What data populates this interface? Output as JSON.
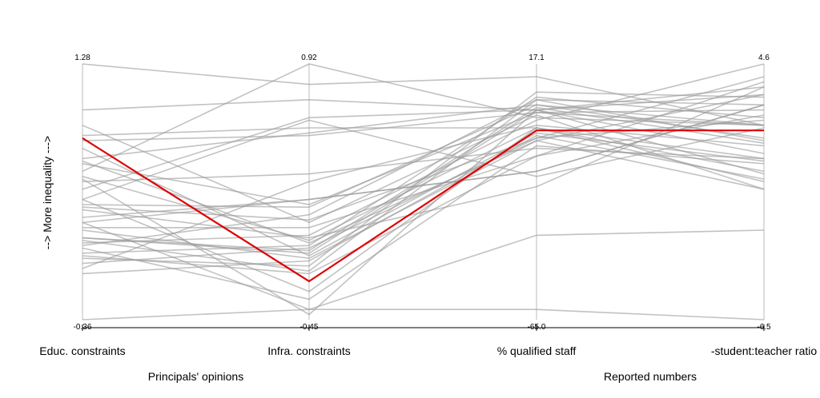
{
  "chart_data": {
    "type": "parallel_coordinates",
    "ylabel": "--> More inequality --->",
    "axes": [
      {
        "name": "Educ. constraints",
        "max_label": "1.28",
        "min_label": "-0.36"
      },
      {
        "name": "Infra. constraints",
        "max_label": "0.92",
        "min_label": "-0.45"
      },
      {
        "name": "% qualified staff",
        "max_label": "17.1",
        "min_label": "-65.0"
      },
      {
        "name": "-student:teacher ratio",
        "max_label": "4.6",
        "min_label": "-6.5"
      }
    ],
    "groups": [
      {
        "label": "Principals' opinions",
        "axes": [
          0,
          1
        ]
      },
      {
        "label": "Reported numbers",
        "axes": [
          2,
          3
        ]
      }
    ],
    "highlight_color": "#dd0000",
    "line_color": "#999999",
    "series_normalized": [
      [
        1.0,
        0.92,
        0.95,
        0.76
      ],
      [
        0.0,
        0.04,
        0.33,
        0.35
      ],
      [
        0.38,
        0.04,
        0.04,
        0.0
      ],
      [
        0.55,
        0.02,
        0.82,
        0.88
      ],
      [
        0.82,
        0.86,
        0.82,
        0.65
      ],
      [
        0.7,
        0.72,
        0.81,
        0.82
      ],
      [
        0.51,
        0.79,
        0.82,
        0.57
      ],
      [
        0.61,
        0.45,
        0.81,
        0.76
      ],
      [
        0.4,
        0.47,
        0.58,
        0.84
      ],
      [
        0.36,
        0.36,
        0.64,
        0.8
      ],
      [
        0.47,
        0.78,
        0.56,
        0.75
      ],
      [
        0.54,
        0.57,
        0.67,
        0.63
      ],
      [
        0.32,
        0.26,
        0.82,
        0.91
      ],
      [
        0.44,
        0.39,
        0.71,
        0.95
      ],
      [
        0.24,
        0.21,
        0.89,
        0.87
      ],
      [
        0.26,
        0.29,
        0.87,
        0.79
      ],
      [
        0.35,
        0.24,
        0.7,
        0.51
      ],
      [
        0.3,
        0.33,
        0.78,
        1.0
      ],
      [
        0.29,
        0.41,
        0.86,
        0.7
      ],
      [
        0.47,
        0.11,
        0.75,
        0.58
      ],
      [
        0.63,
        0.73,
        0.84,
        0.71
      ],
      [
        0.56,
        0.31,
        0.75,
        0.54
      ],
      [
        0.38,
        0.47,
        0.58,
        0.84
      ],
      [
        0.28,
        0.08,
        0.68,
        0.61
      ],
      [
        0.72,
        0.75,
        0.75,
        0.63
      ],
      [
        0.2,
        0.54,
        0.76,
        0.68
      ],
      [
        0.43,
        0.32,
        0.52,
        0.91
      ],
      [
        0.67,
        0.25,
        0.73,
        0.62
      ],
      [
        0.32,
        0.27,
        0.83,
        0.69
      ],
      [
        0.25,
        0.18,
        0.64,
        0.93
      ],
      [
        0.62,
        0.3,
        0.7,
        0.88
      ],
      [
        0.22,
        0.28,
        0.71,
        0.78
      ],
      [
        0.58,
        1.0,
        0.79,
        0.76
      ],
      [
        0.76,
        0.38,
        0.8,
        0.51
      ],
      [
        0.45,
        0.44,
        0.84,
        0.76
      ],
      [
        0.31,
        0.19,
        0.86,
        0.84
      ],
      [
        0.18,
        0.23,
        0.72,
        0.55
      ]
    ],
    "highlight_normalized": [
      0.71,
      0.15,
      0.74,
      0.74
    ]
  }
}
